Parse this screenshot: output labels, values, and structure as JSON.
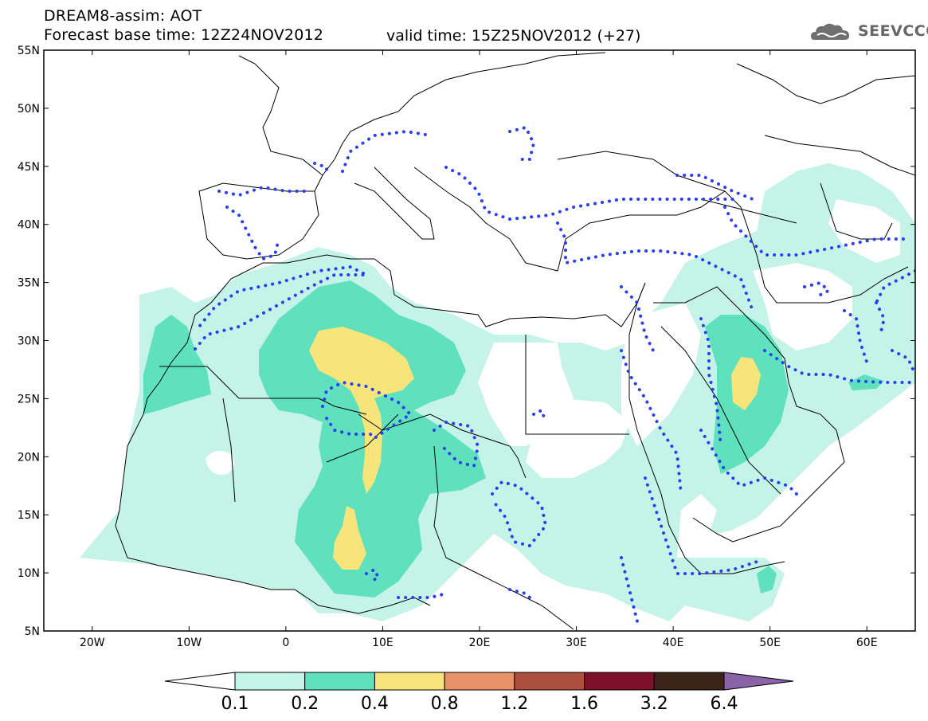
{
  "header": {
    "title": "DREAM8-assim: AOT",
    "base_time": "Forecast base time: 12Z24NOV2012",
    "valid_time": "valid time: 15Z25NOV2012 (+27)",
    "logo_text": "SEEVCCC"
  },
  "map": {
    "lat_labels": [
      "55N",
      "50N",
      "45N",
      "40N",
      "35N",
      "30N",
      "25N",
      "20N",
      "15N",
      "10N",
      "5N"
    ],
    "lon_labels": [
      "20W",
      "10W",
      "0",
      "10E",
      "20E",
      "30E",
      "40E",
      "50E",
      "60E"
    ],
    "extent": {
      "lon": [
        -25,
        65
      ],
      "lat": [
        5,
        55
      ]
    },
    "colors": {
      "contour_line": "#2a3ff0",
      "border": "#000000"
    }
  },
  "colorbar": {
    "labels": [
      "0.1",
      "0.2",
      "0.4",
      "0.8",
      "1.2",
      "1.6",
      "3.2",
      "6.4"
    ],
    "colors": [
      "#c6f3e8",
      "#5fe1bd",
      "#f7e47a",
      "#e8926a",
      "#ad5040",
      "#7c0f2a",
      "#3b2418",
      "#8b63a8"
    ]
  }
}
